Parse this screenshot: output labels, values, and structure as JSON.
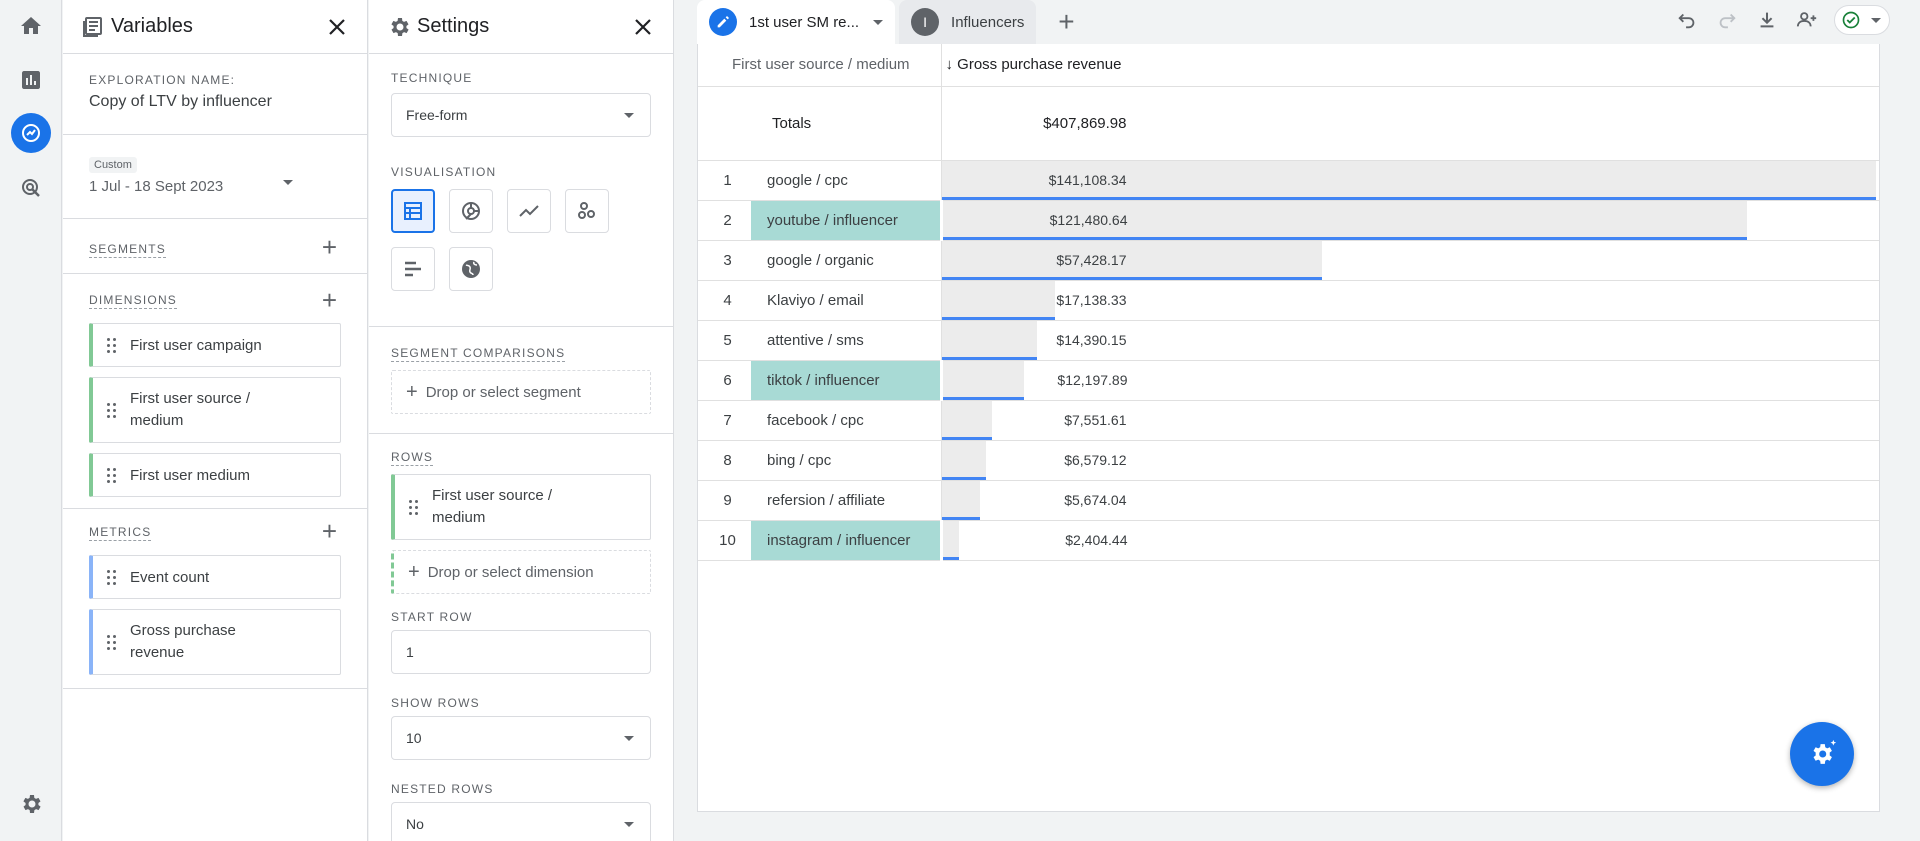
{
  "variables_panel": {
    "title": "Variables",
    "exploration_name_label": "EXPLORATION NAME:",
    "exploration_name": "Copy of LTV by influencer",
    "date_badge": "Custom",
    "date_range": "1 Jul - 18 Sept 2023",
    "segments_label": "SEGMENTS",
    "dimensions_label": "DIMENSIONS",
    "dimensions": [
      "First user campaign",
      "First user source / medium",
      "First user medium"
    ],
    "metrics_label": "METRICS",
    "metrics": [
      "Event count",
      "Gross purchase revenue"
    ]
  },
  "settings_panel": {
    "title": "Settings",
    "technique_label": "TECHNIQUE",
    "technique_value": "Free-form",
    "visualisation_label": "VISUALISATION",
    "viz_icons": [
      "table-icon",
      "donut-chart-icon",
      "line-chart-icon",
      "scatter-icon",
      "bar-chart-icon",
      "globe-icon"
    ],
    "segment_comparisons_label": "SEGMENT COMPARISONS",
    "drop_segment": "Drop or select segment",
    "rows_label": "ROWS",
    "row_dimension": "First user source / medium",
    "drop_dimension": "Drop or select dimension",
    "start_row_label": "START ROW",
    "start_row_value": "1",
    "show_rows_label": "SHOW ROWS",
    "show_rows_value": "10",
    "nested_rows_label": "NESTED ROWS",
    "nested_rows_value": "No"
  },
  "tabs": {
    "active_tab": "1st user SM re...",
    "second_tab_badge": "I",
    "second_tab": "Influencers"
  },
  "colors": {
    "accent": "#1a73e8",
    "highlight": "#a8dad5",
    "bar_line": "#4285f4",
    "dimension_chip": "#81c995",
    "metric_chip": "#8ab4f8"
  },
  "table": {
    "dimension_header": "First user source / medium",
    "metric_header": "Gross purchase revenue",
    "sort_arrow": "↓",
    "totals_label": "Totals",
    "totals_value": "$407,869.98",
    "max_value": 141108.34,
    "rows": [
      {
        "rank": "1",
        "source": "google / cpc",
        "revenue": "$141,108.34",
        "value": 141108.34,
        "highlight": false
      },
      {
        "rank": "2",
        "source": "youtube / influencer",
        "revenue": "$121,480.64",
        "value": 121480.64,
        "highlight": true
      },
      {
        "rank": "3",
        "source": "google / organic",
        "revenue": "$57,428.17",
        "value": 57428.17,
        "highlight": false
      },
      {
        "rank": "4",
        "source": "Klaviyo / email",
        "revenue": "$17,138.33",
        "value": 17138.33,
        "highlight": false
      },
      {
        "rank": "5",
        "source": "attentive / sms",
        "revenue": "$14,390.15",
        "value": 14390.15,
        "highlight": false
      },
      {
        "rank": "6",
        "source": "tiktok / influencer",
        "revenue": "$12,197.89",
        "value": 12197.89,
        "highlight": true
      },
      {
        "rank": "7",
        "source": "facebook / cpc",
        "revenue": "$7,551.61",
        "value": 7551.61,
        "highlight": false
      },
      {
        "rank": "8",
        "source": "bing / cpc",
        "revenue": "$6,579.12",
        "value": 6579.12,
        "highlight": false
      },
      {
        "rank": "9",
        "source": "refersion / affiliate",
        "revenue": "$5,674.04",
        "value": 5674.04,
        "highlight": false
      },
      {
        "rank": "10",
        "source": "instagram / influencer",
        "revenue": "$2,404.44",
        "value": 2404.44,
        "highlight": true
      }
    ]
  }
}
